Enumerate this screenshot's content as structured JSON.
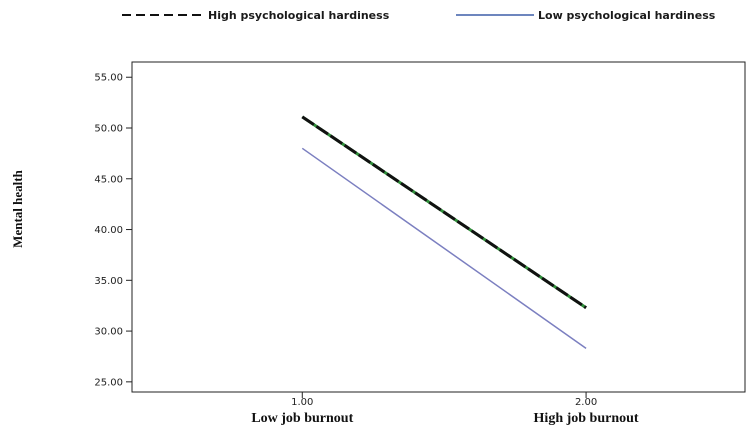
{
  "chart_data": {
    "type": "line",
    "x": [
      1.0,
      2.0
    ],
    "x_tick_labels": [
      "1.00",
      "2.00"
    ],
    "categories": [
      "Low job burnout",
      "High job burnout"
    ],
    "ylabel": "Mental health",
    "xlabel": "",
    "ylim": [
      24.0,
      56.5
    ],
    "xlim": [
      0.4,
      2.56
    ],
    "y_ticks": [
      25,
      30,
      35,
      40,
      45,
      50,
      55
    ],
    "y_tick_labels": [
      "25.00",
      "30.00",
      "35.00",
      "40.00",
      "45.00",
      "50.00",
      "55.00"
    ],
    "grid": false,
    "legend_position": "top",
    "series": [
      {
        "name": "High psychological hardiness",
        "values": [
          51.1,
          32.3
        ],
        "color": "#111111",
        "dash": "dashed"
      },
      {
        "name": "Low psychological hardiness",
        "values": [
          48.0,
          28.3
        ],
        "color": "#7b7fc0",
        "dash": "solid"
      }
    ]
  }
}
